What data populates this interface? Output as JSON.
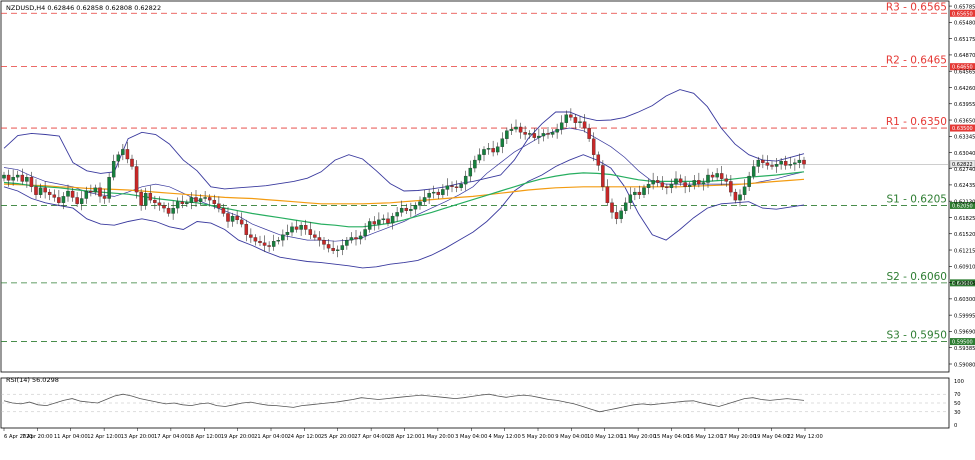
{
  "header": {
    "symbol_info": "NZDUSD,H4  0.62846 0.62858 0.62808 0.62822"
  },
  "chart_data": {
    "type": "candlestick",
    "symbol": "NZDUSD",
    "timeframe": "H4",
    "ohlc_header": {
      "open": 0.62846,
      "high": 0.62858,
      "low": 0.62808,
      "close": 0.62822
    },
    "current_price_label": "0.62822",
    "ylim": [
      0.5893,
      0.6588
    ],
    "price_ticks": [
      "0.65785",
      "0.65480",
      "0.65175",
      "0.64870",
      "0.64565",
      "0.64260",
      "0.63955",
      "0.63650",
      "0.63345",
      "0.63040",
      "0.62740",
      "0.62435",
      "0.62130",
      "0.61825",
      "0.61520",
      "0.61215",
      "0.60910",
      "0.60605",
      "0.60300",
      "0.59995",
      "0.59690",
      "0.59385",
      "0.59080"
    ],
    "levels": [
      {
        "name": "R3",
        "label": "R3 - 0.6565",
        "value": 0.6565,
        "tag": "0.65650",
        "color": "#e53935"
      },
      {
        "name": "R2",
        "label": "R2 - 0.6465",
        "value": 0.6465,
        "tag": "0.64650",
        "color": "#e53935"
      },
      {
        "name": "R1",
        "label": "R1 - 0.6350",
        "value": 0.635,
        "tag": "0.63500",
        "color": "#e53935"
      },
      {
        "name": "S1",
        "label": "S1 - 0.6205",
        "value": 0.6205,
        "tag": "0.62050",
        "color": "#2e7d32"
      },
      {
        "name": "S2",
        "label": "S2 - 0.6060",
        "value": 0.606,
        "tag": "0.60600",
        "color": "#2e7d32"
      },
      {
        "name": "S3",
        "label": "S3 - 0.5950",
        "value": 0.595,
        "tag": "0.59500",
        "color": "#2e7d32"
      }
    ],
    "x_labels": [
      "6 Apr 2023",
      "7 Apr 20:00",
      "11 Apr 04:00",
      "12 Apr 12:00",
      "13 Apr 20:00",
      "17 Apr 04:00",
      "18 Apr 12:00",
      "19 Apr 20:00",
      "21 Apr 04:00",
      "24 Apr 12:00",
      "25 Apr 20:00",
      "27 Apr 04:00",
      "28 Apr 12:00",
      "1 May 20:00",
      "3 May 04:00",
      "4 May 12:00",
      "5 May 20:00",
      "9 May 04:00",
      "10 May 12:00",
      "11 May 20:00",
      "15 May 04:00",
      "16 May 12:00",
      "17 May 20:00",
      "19 May 04:00",
      "22 May 12:00"
    ],
    "close": [
      0.6262,
      0.6252,
      0.6258,
      0.6262,
      0.625,
      0.6258,
      0.624,
      0.6225,
      0.6238,
      0.623,
      0.6225,
      0.622,
      0.621,
      0.6222,
      0.6232,
      0.622,
      0.6208,
      0.6218,
      0.6232,
      0.623,
      0.6238,
      0.6222,
      0.6218,
      0.6258,
      0.6288,
      0.63,
      0.631,
      0.6292,
      0.6278,
      0.623,
      0.6205,
      0.6228,
      0.6215,
      0.621,
      0.6205,
      0.62,
      0.619,
      0.62,
      0.6212,
      0.6208,
      0.621,
      0.622,
      0.6212,
      0.6218,
      0.622,
      0.6215,
      0.6208,
      0.62,
      0.619,
      0.6175,
      0.6185,
      0.6178,
      0.617,
      0.615,
      0.6145,
      0.6138,
      0.6135,
      0.613,
      0.6128,
      0.6138,
      0.614,
      0.615,
      0.6155,
      0.6165,
      0.616,
      0.6168,
      0.616,
      0.615,
      0.6145,
      0.614,
      0.6132,
      0.6125,
      0.612,
      0.6122,
      0.613,
      0.614,
      0.6145,
      0.6142,
      0.6148,
      0.616,
      0.6175,
      0.617,
      0.6178,
      0.618,
      0.6172,
      0.6185,
      0.6192,
      0.62,
      0.6195,
      0.6198,
      0.6205,
      0.6212,
      0.622,
      0.6228,
      0.623,
      0.6225,
      0.6235,
      0.6242,
      0.624,
      0.6238,
      0.6245,
      0.626,
      0.6275,
      0.629,
      0.63,
      0.631,
      0.6312,
      0.6305,
      0.6315,
      0.633,
      0.6345,
      0.6348,
      0.6352,
      0.6342,
      0.6338,
      0.634,
      0.6332,
      0.6335,
      0.634,
      0.6338,
      0.6342,
      0.6348,
      0.636,
      0.6375,
      0.637,
      0.636,
      0.6362,
      0.635,
      0.633,
      0.63,
      0.628,
      0.624,
      0.621,
      0.6192,
      0.618,
      0.6195,
      0.621,
      0.6225,
      0.623,
      0.6225,
      0.6238,
      0.6245,
      0.6252,
      0.6248,
      0.624,
      0.6238,
      0.6245,
      0.6255,
      0.6248,
      0.624,
      0.6243,
      0.6252,
      0.6245,
      0.6248,
      0.6262,
      0.6258,
      0.6265,
      0.6255,
      0.625,
      0.623,
      0.6215,
      0.6225,
      0.624,
      0.626,
      0.6278,
      0.629,
      0.6285,
      0.628,
      0.6278,
      0.6282,
      0.6288,
      0.628,
      0.6282,
      0.6285,
      0.629,
      0.6282
    ],
    "bollinger_upper": [
      0.6312,
      0.6336,
      0.634,
      0.6338,
      0.6335,
      0.6285,
      0.627,
      0.6265,
      0.6268,
      0.633,
      0.6342,
      0.6338,
      0.632,
      0.629,
      0.627,
      0.624,
      0.6236,
      0.6238,
      0.624,
      0.6242,
      0.6246,
      0.625,
      0.6256,
      0.6268,
      0.629,
      0.63,
      0.6292,
      0.627,
      0.6246,
      0.6232,
      0.6233,
      0.6236,
      0.624,
      0.6246,
      0.625,
      0.6256,
      0.6262,
      0.629,
      0.633,
      0.6358,
      0.638,
      0.638,
      0.637,
      0.6364,
      0.6365,
      0.637,
      0.638,
      0.6392,
      0.641,
      0.6422,
      0.6415,
      0.639,
      0.635,
      0.632,
      0.63,
      0.629,
      0.6288,
      0.6295,
      0.6302
    ],
    "bollinger_lower": [
      0.624,
      0.6232,
      0.6218,
      0.621,
      0.6205,
      0.62,
      0.618,
      0.617,
      0.6168,
      0.6175,
      0.618,
      0.6175,
      0.6165,
      0.616,
      0.6175,
      0.6172,
      0.616,
      0.614,
      0.613,
      0.6118,
      0.6108,
      0.6104,
      0.61,
      0.6098,
      0.6095,
      0.6092,
      0.6088,
      0.609,
      0.6095,
      0.6098,
      0.6102,
      0.6112,
      0.6125,
      0.614,
      0.6155,
      0.6175,
      0.62,
      0.6232,
      0.625,
      0.6262,
      0.6278,
      0.629,
      0.63,
      0.629,
      0.6275,
      0.624,
      0.619,
      0.615,
      0.614,
      0.616,
      0.6182,
      0.62,
      0.6208,
      0.621,
      0.6212,
      0.62,
      0.6198,
      0.6202,
      0.6206
    ],
    "bollinger_middle": [
      0.6276,
      0.6272,
      0.626,
      0.625,
      0.6245,
      0.624,
      0.623,
      0.6225,
      0.6222,
      0.623,
      0.624,
      0.6245,
      0.624,
      0.6228,
      0.6215,
      0.6205,
      0.6195,
      0.6185,
      0.617,
      0.616,
      0.615,
      0.6145,
      0.614,
      0.614,
      0.6138,
      0.614,
      0.6145,
      0.6155,
      0.6165,
      0.6175,
      0.6188,
      0.62,
      0.6212,
      0.6225,
      0.624,
      0.6265,
      0.6285,
      0.6305,
      0.632,
      0.6335,
      0.6345,
      0.635,
      0.6345,
      0.633,
      0.6315,
      0.6295,
      0.627,
      0.625,
      0.6245,
      0.6245,
      0.6245,
      0.6245,
      0.6245,
      0.6245,
      0.6245,
      0.625,
      0.6255,
      0.6262,
      0.6268
    ],
    "ma_green": [
      0.6248,
      0.6246,
      0.6242,
      0.624,
      0.6238,
      0.6235,
      0.6232,
      0.623,
      0.6228,
      0.6226,
      0.6222,
      0.6218,
      0.6215,
      0.6212,
      0.621,
      0.6205,
      0.62,
      0.6195,
      0.619,
      0.6186,
      0.6182,
      0.6178,
      0.6174,
      0.617,
      0.6168,
      0.6165,
      0.6165,
      0.6168,
      0.6172,
      0.6178,
      0.6185,
      0.6192,
      0.62,
      0.6208,
      0.6216,
      0.6224,
      0.6232,
      0.624,
      0.6248,
      0.6255,
      0.626,
      0.6264,
      0.6266,
      0.6265,
      0.6263,
      0.6258,
      0.6253,
      0.625,
      0.625,
      0.625,
      0.625,
      0.625,
      0.6252,
      0.6255,
      0.6258,
      0.626,
      0.6262,
      0.6265,
      0.6268
    ],
    "ma_orange": [
      0.6245,
      0.6244,
      0.6243,
      0.6242,
      0.624,
      0.6239,
      0.6237,
      0.6236,
      0.6235,
      0.6234,
      0.6232,
      0.623,
      0.6228,
      0.6226,
      0.6224,
      0.6222,
      0.622,
      0.6219,
      0.6218,
      0.6216,
      0.6214,
      0.6212,
      0.621,
      0.6208,
      0.6208,
      0.6208,
      0.6208,
      0.6209,
      0.621,
      0.6212,
      0.6214,
      0.6216,
      0.6218,
      0.622,
      0.6222,
      0.6225,
      0.6228,
      0.6231,
      0.6234,
      0.6236,
      0.6238,
      0.6239,
      0.624,
      0.624,
      0.624,
      0.624,
      0.624,
      0.624,
      0.624,
      0.624,
      0.6241,
      0.6242,
      0.6243,
      0.6244,
      0.6246,
      0.6248,
      0.625,
      0.6252,
      0.6254
    ],
    "rsi": {
      "label": "RSI(14) 56.0298",
      "ticks": [
        "100",
        "70",
        "50",
        "30",
        "0"
      ],
      "levels": [
        70,
        50,
        30
      ],
      "values": [
        55,
        50,
        48,
        52,
        46,
        44,
        50,
        56,
        60,
        54,
        52,
        50,
        58,
        66,
        70,
        66,
        60,
        56,
        52,
        48,
        50,
        46,
        44,
        48,
        50,
        44,
        42,
        46,
        50,
        52,
        48,
        45,
        44,
        42,
        40,
        44,
        46,
        48,
        50,
        52,
        55,
        58,
        62,
        60,
        58,
        60,
        62,
        64,
        66,
        68,
        66,
        64,
        62,
        60,
        62,
        65,
        68,
        70,
        66,
        63,
        66,
        68,
        66,
        62,
        58,
        56,
        52,
        48,
        42,
        36,
        30,
        34,
        38,
        42,
        46,
        48,
        46,
        48,
        50,
        52,
        54,
        55,
        50,
        46,
        42,
        48,
        54,
        60,
        62,
        58,
        56,
        58,
        60,
        58,
        56
      ]
    }
  }
}
